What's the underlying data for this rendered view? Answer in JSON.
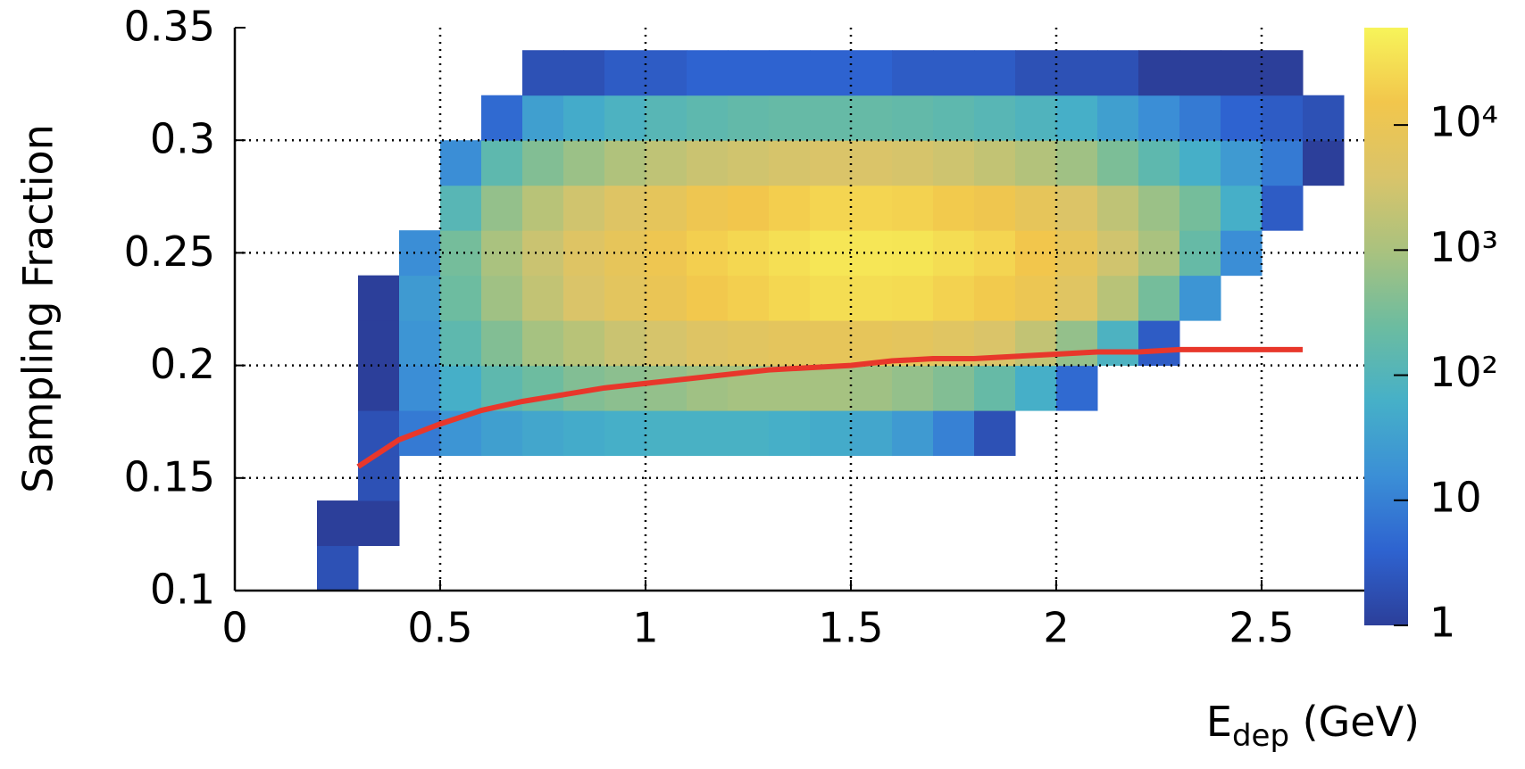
{
  "chart_data": {
    "type": "heatmap",
    "y_label": "Sampling Fraction",
    "x_label": {
      "base": "E",
      "subscript": "dep",
      "rest": " (GeV)"
    },
    "xlim": [
      0,
      2.75
    ],
    "ylim": [
      0.1,
      0.35
    ],
    "xticks": [
      0,
      0.5,
      1,
      1.5,
      2,
      2.5
    ],
    "yticks": [
      0.1,
      0.15,
      0.2,
      0.25,
      0.3,
      0.35
    ],
    "grid": true,
    "log_z": true,
    "zlim": [
      1,
      60000
    ],
    "zticks": [
      1,
      10,
      {
        "value": 100,
        "label": "10²"
      },
      {
        "value": 1000,
        "label": "10³"
      },
      {
        "value": 10000,
        "label": "10⁴"
      }
    ],
    "colormap": [
      "#2c3f9a",
      "#2e63d0",
      "#3b8fd6",
      "#46b0c8",
      "#6cbca0",
      "#a9c27f",
      "#d9c46a",
      "#f2c64c",
      "#f7f45a"
    ],
    "x_bins": [
      0.2,
      0.3,
      0.4,
      0.5,
      0.6,
      0.7,
      0.8,
      0.9,
      1.0,
      1.1,
      1.2,
      1.3,
      1.4,
      1.5,
      1.6,
      1.7,
      1.8,
      1.9,
      2.0,
      2.1,
      2.2,
      2.3,
      2.4,
      2.5,
      2.6,
      2.7
    ],
    "y_bins": [
      0.1,
      0.12,
      0.14,
      0.16,
      0.18,
      0.2,
      0.22,
      0.24,
      0.26,
      0.28,
      0.3,
      0.32,
      0.34
    ],
    "z": [
      [
        2,
        1,
        null,
        null,
        null,
        null,
        null,
        null,
        null,
        null,
        null,
        null
      ],
      [
        null,
        1,
        2,
        2,
        1,
        1,
        1,
        null,
        null,
        null,
        null,
        null
      ],
      [
        null,
        null,
        null,
        8,
        15,
        20,
        25,
        15,
        null,
        null,
        null,
        null
      ],
      [
        null,
        null,
        null,
        20,
        60,
        150,
        250,
        300,
        120,
        15,
        null,
        null
      ],
      [
        null,
        null,
        null,
        30,
        150,
        400,
        800,
        1000,
        600,
        150,
        5,
        null
      ],
      [
        null,
        null,
        null,
        40,
        250,
        900,
        2000,
        2500,
        1500,
        400,
        30,
        2
      ],
      [
        null,
        null,
        null,
        50,
        400,
        1500,
        4000,
        5000,
        3000,
        700,
        50,
        2
      ],
      [
        null,
        null,
        null,
        60,
        500,
        2500,
        6500,
        8000,
        5000,
        1200,
        80,
        3
      ],
      [
        null,
        null,
        null,
        70,
        600,
        3500,
        10000,
        12000,
        7500,
        1800,
        120,
        3
      ],
      [
        null,
        null,
        null,
        70,
        800,
        5000,
        16000,
        20000,
        12000,
        2500,
        150,
        4
      ],
      [
        null,
        null,
        null,
        70,
        900,
        6000,
        20000,
        25000,
        15000,
        3000,
        180,
        4
      ],
      [
        null,
        null,
        null,
        60,
        900,
        7000,
        25000,
        32000,
        19000,
        3500,
        200,
        4
      ],
      [
        null,
        null,
        null,
        50,
        900,
        8000,
        30000,
        40000,
        24000,
        4000,
        200,
        4
      ],
      [
        null,
        null,
        null,
        40,
        800,
        8000,
        30000,
        40000,
        24000,
        4000,
        200,
        4
      ],
      [
        null,
        null,
        null,
        25,
        600,
        7000,
        28000,
        38000,
        22000,
        3500,
        180,
        3
      ],
      [
        null,
        null,
        null,
        10,
        400,
        5500,
        22000,
        30000,
        17000,
        2800,
        150,
        3
      ],
      [
        null,
        null,
        null,
        2,
        200,
        4000,
        17000,
        24000,
        13000,
        2000,
        120,
        3
      ],
      [
        null,
        null,
        null,
        null,
        60,
        2000,
        11000,
        15000,
        8000,
        1300,
        90,
        2
      ],
      [
        null,
        null,
        null,
        null,
        5,
        600,
        5500,
        8000,
        4500,
        800,
        60,
        2
      ],
      [
        null,
        null,
        null,
        null,
        null,
        80,
        1500,
        3000,
        1800,
        350,
        30,
        2
      ],
      [
        null,
        null,
        null,
        null,
        null,
        3,
        300,
        1000,
        700,
        150,
        15,
        1
      ],
      [
        null,
        null,
        null,
        null,
        null,
        null,
        20,
        200,
        300,
        60,
        8,
        1
      ],
      [
        null,
        null,
        null,
        null,
        null,
        null,
        null,
        15,
        60,
        25,
        4,
        1
      ],
      [
        null,
        null,
        null,
        null,
        null,
        null,
        null,
        null,
        3,
        8,
        3,
        1
      ],
      [
        null,
        null,
        null,
        null,
        null,
        null,
        null,
        null,
        null,
        1,
        2,
        null
      ]
    ],
    "curve": {
      "color": "#e8372b",
      "x": [
        0.3,
        0.4,
        0.5,
        0.6,
        0.7,
        0.8,
        0.9,
        1.0,
        1.1,
        1.2,
        1.3,
        1.4,
        1.5,
        1.6,
        1.7,
        1.8,
        1.9,
        2.0,
        2.1,
        2.2,
        2.3,
        2.4,
        2.5,
        2.6
      ],
      "y": [
        0.155,
        0.167,
        0.174,
        0.18,
        0.184,
        0.187,
        0.19,
        0.192,
        0.194,
        0.196,
        0.198,
        0.199,
        0.2,
        0.202,
        0.203,
        0.203,
        0.204,
        0.205,
        0.206,
        0.206,
        0.207,
        0.207,
        0.207,
        0.207
      ]
    }
  }
}
